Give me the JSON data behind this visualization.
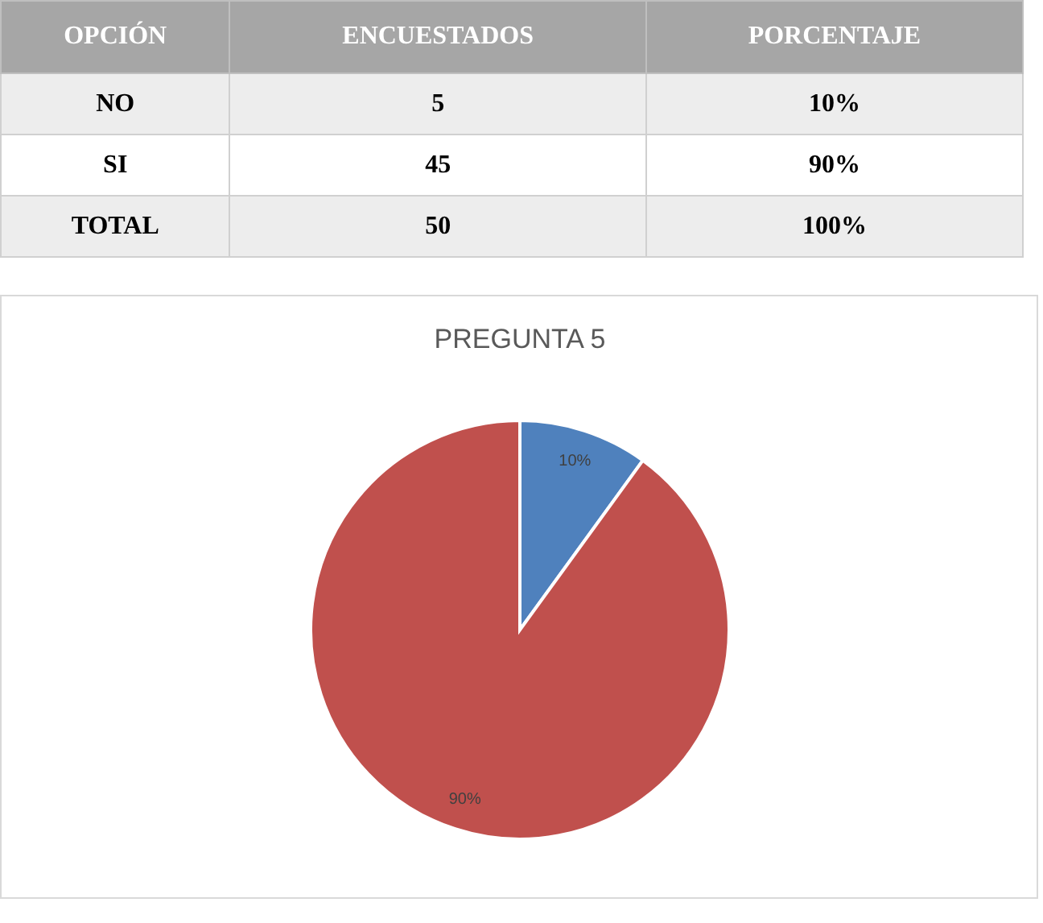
{
  "chart_data": [
    {
      "type": "other",
      "categories": [
        "OPCIÓN",
        "ENCUESTADOS",
        "PORCENTAJE"
      ],
      "annotations": [
        "NO",
        "5",
        "10%",
        "SI",
        "45",
        "90%",
        "TOTAL",
        "50",
        "100%"
      ]
    },
    {
      "type": "pie",
      "title": "PREGUNTA 5",
      "categories": [
        null,
        null
      ],
      "values": [
        10,
        90
      ],
      "colors": [
        "#4f81bd",
        "#c0504d"
      ],
      "value_labels": [
        "10%",
        "90%"
      ]
    }
  ]
}
